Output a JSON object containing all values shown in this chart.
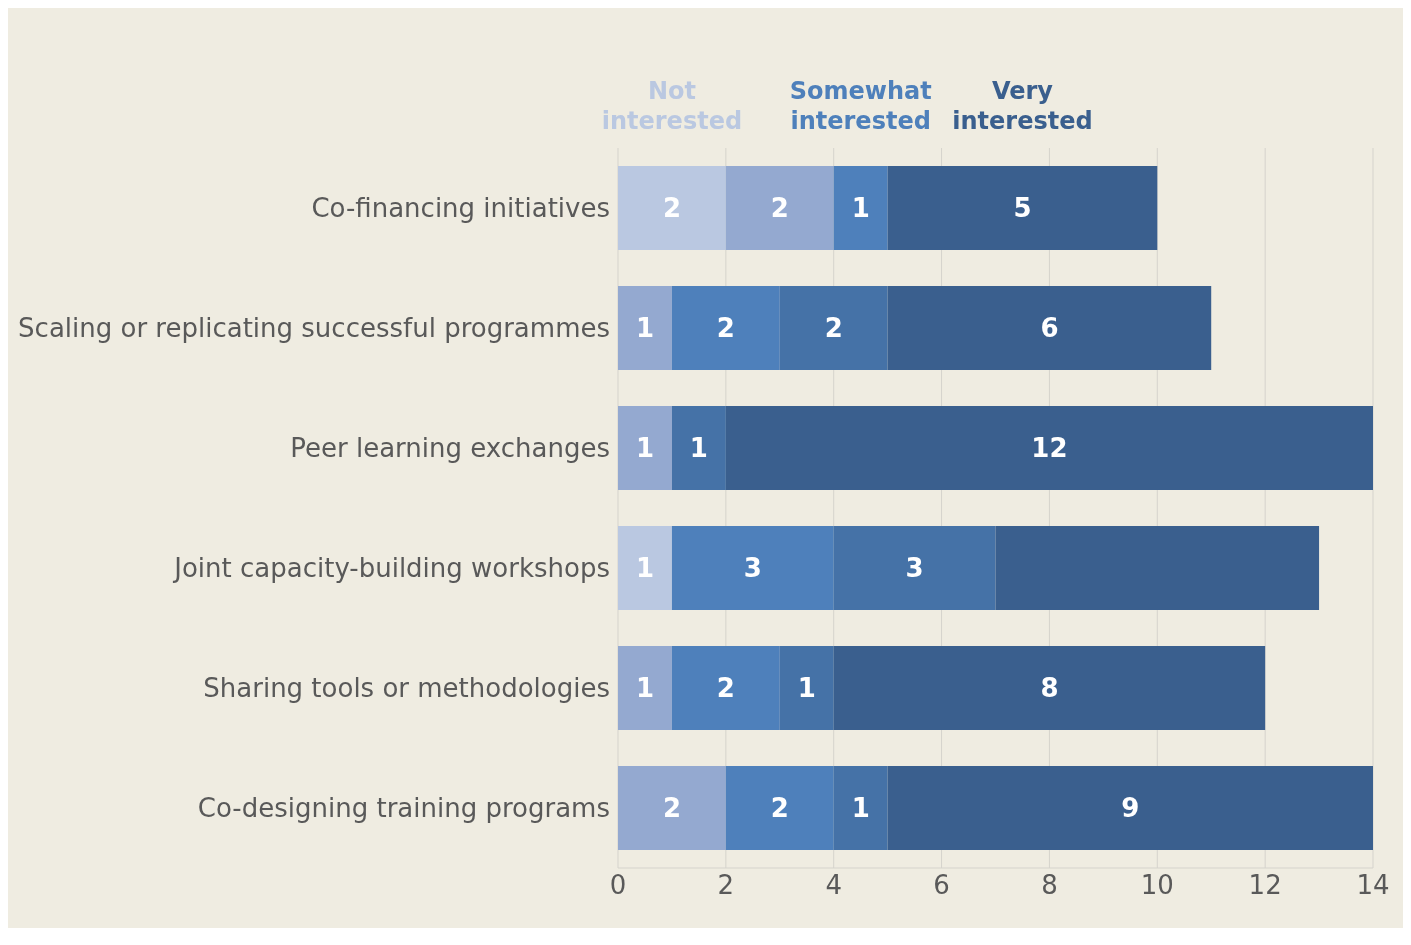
{
  "chart_data": {
    "type": "bar",
    "orientation": "horizontal",
    "stacked": true,
    "categories": [
      "Co-financing initiatives",
      "Scaling or replicating successful programmes",
      "Peer learning exchanges",
      "Joint capacity-building workshops",
      "Sharing tools or methodologies",
      "Co-designing training programs"
    ],
    "series": [
      {
        "name": "Not interested",
        "color": "#bac8e1",
        "values": [
          2,
          0,
          0,
          1,
          0,
          0
        ],
        "value_labels": [
          "2",
          null,
          null,
          "1",
          null,
          null
        ]
      },
      {
        "color": "#94a9d0",
        "values": [
          2,
          1,
          1,
          0,
          1,
          2
        ],
        "value_labels": [
          "2",
          "1",
          "1",
          null,
          "1",
          "2"
        ]
      },
      {
        "name": "Somewhat interested",
        "color": "#4e80bb",
        "values": [
          1,
          2,
          0,
          3,
          2,
          2
        ],
        "value_labels": [
          "1",
          "2",
          null,
          "3",
          "2",
          "2"
        ]
      },
      {
        "color": "#4572a7",
        "values": [
          0,
          2,
          1,
          3,
          1,
          1
        ],
        "value_labels": [
          null,
          "2",
          "1",
          "3",
          "1",
          "1"
        ]
      },
      {
        "name": "Very interested",
        "color": "#3a5f8e",
        "values": [
          5,
          6,
          12,
          6,
          8,
          9
        ],
        "value_labels": [
          "5",
          "6",
          "12",
          null,
          "8",
          "9"
        ]
      }
    ],
    "xlim": [
      0,
      14
    ],
    "xticks": [
      0,
      2,
      4,
      6,
      8,
      10,
      12,
      14
    ],
    "grid": "x",
    "legend": "top"
  }
}
